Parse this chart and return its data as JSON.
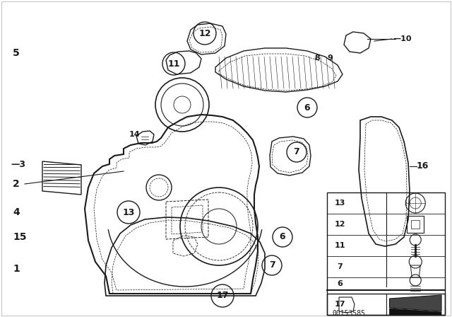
{
  "bg_color": "#ffffff",
  "line_color": "#1a1a1a",
  "part_number": "00153585",
  "fig_w": 6.4,
  "fig_h": 4.48,
  "dpi": 100
}
